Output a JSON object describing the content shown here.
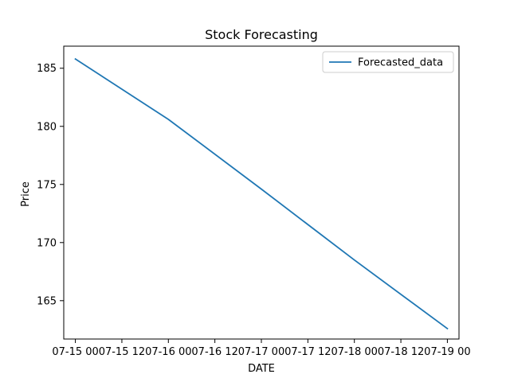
{
  "chart_data": {
    "type": "line",
    "title": "Stock Forecasting",
    "xlabel": "DATE",
    "ylabel": "Price",
    "x_ticks": [
      "07-15 00",
      "07-15 12",
      "07-16 00",
      "07-16 12",
      "07-17 00",
      "07-17 12",
      "07-18 00",
      "07-18 12",
      "07-19 00"
    ],
    "y_ticks": [
      165,
      170,
      175,
      180,
      185
    ],
    "xlim": [
      "07-14 21",
      "07-19 03"
    ],
    "ylim": [
      161.7,
      186.9
    ],
    "grid": false,
    "legend_position": "top-right",
    "series": [
      {
        "name": "Forecasted_data",
        "color": "#1f77b4",
        "x": [
          "07-15 00",
          "07-16 00",
          "07-17 00",
          "07-18 00",
          "07-19 00"
        ],
        "values": [
          185.8,
          180.6,
          174.6,
          168.5,
          162.6
        ]
      }
    ]
  }
}
